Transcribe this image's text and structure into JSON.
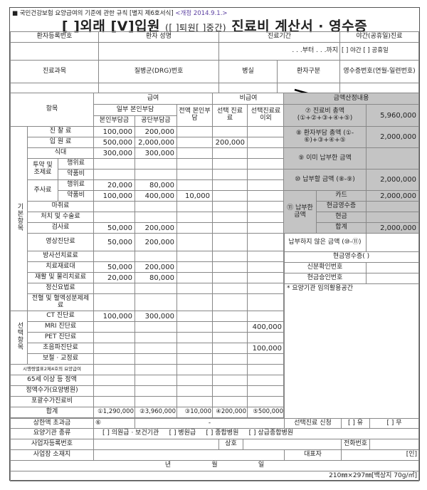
{
  "header": {
    "regulation": "■ 국민건강보험 요양급여의 기준에 관한 규칙 [별지 제6호서식]",
    "revision": "<개정 2014.9.1.>",
    "title_outpatient": "[ ]외래",
    "title_inpatient": "[V]입원",
    "title_sub": "([ ]퇴원[ ]중간)",
    "title_main": "진료비 계산서 · 영수증"
  },
  "top": {
    "reg_no": "환자등록번호",
    "name": "환자 성명",
    "period": "진료기간",
    "night": "야간(공휴일)진료",
    "period_value": ". . .부터 . . .까지",
    "night_value": "[ ] 야간 [ ] 공휴일",
    "dept": "진료과목",
    "drg": "질병군(DRG)번호",
    "room": "병실",
    "patient_type": "환자구분",
    "receipt_no": "영수증번호(연월-일련번호)"
  },
  "table": {
    "item": "항목",
    "covered": "급여",
    "partial": "일부 본인부담",
    "self_pay": "본인부담금",
    "corp_pay": "공단부담금",
    "full_self": "전액 본인부담",
    "noncovered": "비급여",
    "selective": "선택 진료료",
    "other": "선택진료료 이외",
    "group_basic": "기본항목",
    "group_optional": "선택항목",
    "rows": [
      {
        "g": "basic",
        "label": "진 찰 료",
        "v": [
          "100,000",
          "200,000",
          "",
          "",
          ""
        ]
      },
      {
        "g": "basic",
        "label": "입 원 료",
        "v": [
          "500,000",
          "2,000,000",
          "",
          "200,000",
          ""
        ]
      },
      {
        "g": "basic",
        "label": "식대",
        "v": [
          "300,000",
          "300,000",
          "",
          "",
          ""
        ]
      },
      {
        "g": "basic",
        "parent": "투약 및 조제료",
        "label": "행위료",
        "v": [
          "",
          "",
          "",
          "",
          ""
        ]
      },
      {
        "g": "basic",
        "parent": "투약 및 조제료",
        "label": "약품비",
        "v": [
          "",
          "",
          "",
          "",
          ""
        ]
      },
      {
        "g": "basic",
        "parent": "주사료",
        "label": "행위료",
        "v": [
          "20,000",
          "80,000",
          "",
          "",
          ""
        ]
      },
      {
        "g": "basic",
        "parent": "주사료",
        "label": "약품비",
        "v": [
          "100,000",
          "400,000",
          "10,000",
          "",
          ""
        ]
      },
      {
        "g": "basic",
        "label": "마취료",
        "v": [
          "",
          "",
          "",
          "",
          ""
        ]
      },
      {
        "g": "basic",
        "label": "처치 및 수술료",
        "v": [
          "",
          "",
          "",
          "",
          ""
        ]
      },
      {
        "g": "basic",
        "label": "검사료",
        "v": [
          "50,000",
          "200,000",
          "",
          "",
          ""
        ]
      },
      {
        "g": "basic",
        "label": "영상진단료",
        "v": [
          "50,000",
          "200,000",
          "",
          "",
          ""
        ],
        "tall": 25
      },
      {
        "g": "basic",
        "label": "방사선치료료",
        "v": [
          "",
          "",
          "",
          "",
          ""
        ]
      },
      {
        "g": "basic",
        "label": "치료재료대",
        "v": [
          "50,000",
          "200,000",
          "",
          "",
          ""
        ]
      },
      {
        "g": "basic",
        "label": "재활 및 물리치료료",
        "v": [
          "20,000",
          "80,000",
          "",
          "",
          ""
        ]
      },
      {
        "g": "basic",
        "label": "정신요법료",
        "v": [
          "",
          "",
          "",
          "",
          ""
        ]
      },
      {
        "g": "basic",
        "label": "전혈 및 혈액성분제제료",
        "v": [
          "",
          "",
          "",
          "",
          ""
        ],
        "tall": 24
      },
      {
        "g": "optional",
        "label": "CT 진단료",
        "v": [
          "100,000",
          "300,000",
          "",
          "",
          ""
        ]
      },
      {
        "g": "optional",
        "label": "MRI 진단료",
        "v": [
          "",
          "",
          "",
          "",
          "400,000"
        ]
      },
      {
        "g": "optional",
        "label": "PET 진단료",
        "v": [
          "",
          "",
          "",
          "",
          ""
        ]
      },
      {
        "g": "optional",
        "label": "초음파진단료",
        "v": [
          "",
          "",
          "",
          "",
          "100,000"
        ]
      },
      {
        "g": "optional",
        "label": "보철 · 교정료",
        "v": [
          "",
          "",
          "",
          "",
          ""
        ]
      },
      {
        "label": "시행령별표2제4호의 요양급여",
        "v": [
          "",
          "",
          "",
          "",
          ""
        ],
        "small": true
      },
      {
        "label": "65세 이상 등 정액",
        "v": [
          "",
          "",
          "",
          "",
          ""
        ]
      },
      {
        "label": "정액수가(요양병원)",
        "v": [
          "",
          "",
          "",
          "",
          ""
        ]
      },
      {
        "label": "포괄수가진료비",
        "v": [
          "",
          "",
          "",
          "",
          ""
        ]
      },
      {
        "label": "합계",
        "v": [
          "①1,290,000",
          "②3,960,000",
          "③10,000",
          "④200,000",
          "⑤500,000"
        ]
      }
    ]
  },
  "summary": {
    "title": "금액산정내용",
    "total_label": "⑦ 진료비 총액 (①+②+③+④+⑤)",
    "total": "5,960,000",
    "patient_label": "⑧ 환자부담 총액 (①-⑥)+③+④+⑤",
    "patient": "2,000,000",
    "paid_label": "⑨ 이미 납부한 금액",
    "paid": "",
    "due_label": "⑩ 납부할 금액 (⑧-⑨)",
    "due": "2,000,000",
    "payment_label": "⑪ 납부한 금액",
    "card": "카드",
    "card_value": "2,000,000",
    "cash_receipt": "현금영수증",
    "cash_receipt_value": "",
    "cash": "현금",
    "cash_value": "",
    "sum": "합계",
    "sum_value": "2,000,000",
    "unpaid_label": "납부하지 않은 금액 (⑩-⑪)",
    "unpaid": "",
    "cash_receipt_hdr": "현금영수증(     )",
    "id_no": "신분확인번호",
    "approval_no": "현금승인번호",
    "free_space": "* 요양기관 임의활용공간"
  },
  "bottom": {
    "cap_label": "상한액 초과금",
    "cap_value": "⑥",
    "cap_dash": "-",
    "sel_req": "선택진료 신청",
    "sel_yes": "[ ] 유",
    "sel_no": "[ ] 무",
    "inst_type": "요양기관 종류",
    "inst_opts": "[ ] 의원급 · 보건기관     [ ] 병원급     [ ] 종합병원     [ ] 상급종합병원",
    "biz_no": "사업자등록번호",
    "trade_name": "상호",
    "phone": "전화번호",
    "address": "사업장 소재지",
    "rep": "대표자",
    "seal": "[인]",
    "date": "년                    월                    일",
    "paper": "210㎜×297㎜[백상지 70g/㎡]"
  }
}
